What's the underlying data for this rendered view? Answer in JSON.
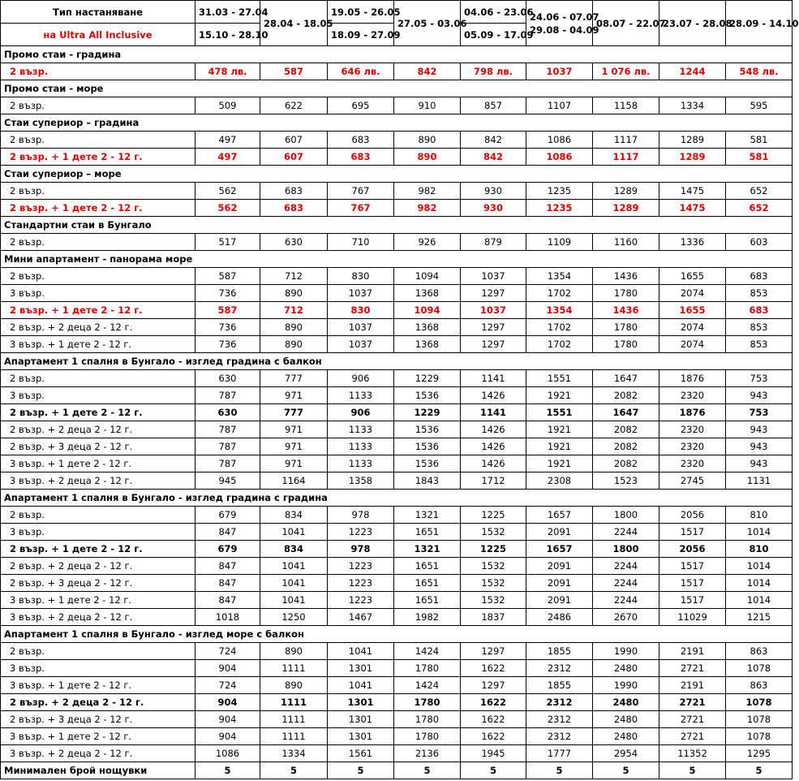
{
  "header": {
    "title": "Тип настаняване",
    "subtitle": "на Ultra All Inclusive",
    "periods": [
      {
        "dates": [
          "31.03 - 27.04",
          "15.10 - 28.10"
        ],
        "split": true
      },
      {
        "dates": [
          "28.04 - 18.05"
        ]
      },
      {
        "dates": [
          "19.05 - 26.05",
          "18.09 - 27.09"
        ],
        "split": true
      },
      {
        "dates": [
          "27.05 - 03.06"
        ]
      },
      {
        "dates": [
          "04.06 - 23.06",
          "05.09 - 17.09"
        ],
        "split": true
      },
      {
        "dates": [
          "24.06 - 07.07",
          "29.08 - 04.09"
        ],
        "split": false
      },
      {
        "dates": [
          "08.07 - 22.07"
        ]
      },
      {
        "dates": [
          "23.07 - 28.08"
        ]
      },
      {
        "dates": [
          "28.09 - 14.10"
        ]
      }
    ]
  },
  "table": {
    "rows": [
      {
        "section": "Промо стаи  -  градина"
      },
      {
        "label": "2 възр.",
        "style": "red",
        "cells": [
          "478 лв.",
          "587",
          "646 лв.",
          "842",
          "798 лв.",
          "1037",
          "1 076 лв.",
          "1244",
          "548 лв."
        ]
      },
      {
        "section": "Промо стаи  -  море"
      },
      {
        "label": "2 възр.",
        "cells": [
          "509",
          "622",
          "695",
          "910",
          "857",
          "1107",
          "1158",
          "1334",
          "595"
        ]
      },
      {
        "section": "Стаи супериор – градина"
      },
      {
        "label": "2 възр.",
        "cells": [
          "497",
          "607",
          "683",
          "890",
          "842",
          "1086",
          "1117",
          "1289",
          "581"
        ]
      },
      {
        "label": "2 възр. + 1 дете 2 - 12 г.",
        "style": "red",
        "cells": [
          "497",
          "607",
          "683",
          "890",
          "842",
          "1086",
          "1117",
          "1289",
          "581"
        ]
      },
      {
        "section": "Стаи супериор – море"
      },
      {
        "label": "2 възр.",
        "cells": [
          "562",
          "683",
          "767",
          "982",
          "930",
          "1235",
          "1289",
          "1475",
          "652"
        ]
      },
      {
        "label": "2 възр. + 1 дете 2 - 12 г.",
        "style": "red",
        "cells": [
          "562",
          "683",
          "767",
          "982",
          "930",
          "1235",
          "1289",
          "1475",
          "652"
        ]
      },
      {
        "section": "Стандартни стаи в Бунгало"
      },
      {
        "label": "2 възр.",
        "cells": [
          "517",
          "630",
          "710",
          "926",
          "879",
          "1109",
          "1160",
          "1336",
          "603"
        ]
      },
      {
        "section": "Мини апартамент - панорама море"
      },
      {
        "label": "2 възр.",
        "cells": [
          "587",
          "712",
          "830",
          "1094",
          "1037",
          "1354",
          "1436",
          "1655",
          "683"
        ]
      },
      {
        "label": "3 възр.",
        "cells": [
          "736",
          "890",
          "1037",
          "1368",
          "1297",
          "1702",
          "1780",
          "2074",
          "853"
        ]
      },
      {
        "label": "2 възр. + 1 дете 2 - 12 г.",
        "style": "red",
        "cells": [
          "587",
          "712",
          "830",
          "1094",
          "1037",
          "1354",
          "1436",
          "1655",
          "683"
        ]
      },
      {
        "label": "2 възр. + 2 деца 2 - 12 г.",
        "cells": [
          "736",
          "890",
          "1037",
          "1368",
          "1297",
          "1702",
          "1780",
          "2074",
          "853"
        ]
      },
      {
        "label": "3 възр. + 1 дете 2 - 12 г.",
        "cells": [
          "736",
          "890",
          "1037",
          "1368",
          "1297",
          "1702",
          "1780",
          "2074",
          "853"
        ]
      },
      {
        "section": "Апартамент 1 спалня в Бунгало - изглед градина с балкон"
      },
      {
        "label": "2 възр.",
        "cells": [
          "630",
          "777",
          "906",
          "1229",
          "1141",
          "1551",
          "1647",
          "1876",
          "753"
        ]
      },
      {
        "label": "3 възр.",
        "cells": [
          "787",
          "971",
          "1133",
          "1536",
          "1426",
          "1921",
          "2082",
          "2320",
          "943"
        ]
      },
      {
        "label": "2 възр. + 1 дете 2 - 12 г.",
        "style": "bold",
        "cells": [
          "630",
          "777",
          "906",
          "1229",
          "1141",
          "1551",
          "1647",
          "1876",
          "753"
        ]
      },
      {
        "label": "2 възр. + 2 деца 2 - 12 г.",
        "cells": [
          "787",
          "971",
          "1133",
          "1536",
          "1426",
          "1921",
          "2082",
          "2320",
          "943"
        ]
      },
      {
        "label": "2 възр. + 3 деца 2 - 12 г.",
        "cells": [
          "787",
          "971",
          "1133",
          "1536",
          "1426",
          "1921",
          "2082",
          "2320",
          "943"
        ]
      },
      {
        "label": "3 възр. + 1 дете 2 - 12 г.",
        "cells": [
          "787",
          "971",
          "1133",
          "1536",
          "1426",
          "1921",
          "2082",
          "2320",
          "943"
        ]
      },
      {
        "label": "3 възр. + 2 деца 2 - 12 г.",
        "cells": [
          "945",
          "1164",
          "1358",
          "1843",
          "1712",
          "2308",
          "1523",
          "2745",
          "1131"
        ]
      },
      {
        "section": "Апартамент 1 спалня в Бунгало - изглед градина с градина"
      },
      {
        "label": "2 възр.",
        "cells": [
          "679",
          "834",
          "978",
          "1321",
          "1225",
          "1657",
          "1800",
          "2056",
          "810"
        ]
      },
      {
        "label": "3 възр.",
        "cells": [
          "847",
          "1041",
          "1223",
          "1651",
          "1532",
          "2091",
          "2244",
          "1517",
          "1014"
        ]
      },
      {
        "label": "2 възр. + 1 дете 2 - 12 г.",
        "style": "bold",
        "cells": [
          "679",
          "834",
          "978",
          "1321",
          "1225",
          "1657",
          "1800",
          "2056",
          "810"
        ]
      },
      {
        "label": "2 възр. + 2 деца 2 - 12 г.",
        "cells": [
          "847",
          "1041",
          "1223",
          "1651",
          "1532",
          "2091",
          "2244",
          "1517",
          "1014"
        ]
      },
      {
        "label": "2 възр. + 3 деца 2 - 12 г.",
        "cells": [
          "847",
          "1041",
          "1223",
          "1651",
          "1532",
          "2091",
          "2244",
          "1517",
          "1014"
        ]
      },
      {
        "label": "3 възр. + 1 дете 2 - 12 г.",
        "cells": [
          "847",
          "1041",
          "1223",
          "1651",
          "1532",
          "2091",
          "2244",
          "1517",
          "1014"
        ]
      },
      {
        "label": "3 възр. + 2 деца 2 - 12 г.",
        "cells": [
          "1018",
          "1250",
          "1467",
          "1982",
          "1837",
          "2486",
          "2670",
          "11029",
          "1215"
        ]
      },
      {
        "section": "Апартамент 1 спалня в Бунгало - изглед море с балкон"
      },
      {
        "label": "2 възр.",
        "cells": [
          "724",
          "890",
          "1041",
          "1424",
          "1297",
          "1855",
          "1990",
          "2191",
          "863"
        ]
      },
      {
        "label": "3 възр.",
        "cells": [
          "904",
          "1111",
          "1301",
          "1780",
          "1622",
          "2312",
          "2480",
          "2721",
          "1078"
        ]
      },
      {
        "label": "3 възр. + 1 дете 2 - 12 г.",
        "cells": [
          "724",
          "890",
          "1041",
          "1424",
          "1297",
          "1855",
          "1990",
          "2191",
          "863"
        ]
      },
      {
        "label": "2 възр. + 2 деца 2 - 12 г.",
        "style": "bold",
        "cells": [
          "904",
          "1111",
          "1301",
          "1780",
          "1622",
          "2312",
          "2480",
          "2721",
          "1078"
        ]
      },
      {
        "label": "2 възр. + 3 деца 2 - 12 г.",
        "cells": [
          "904",
          "1111",
          "1301",
          "1780",
          "1622",
          "2312",
          "2480",
          "2721",
          "1078"
        ]
      },
      {
        "label": "3 възр. + 1 дете 2 - 12 г.",
        "cells": [
          "904",
          "1111",
          "1301",
          "1780",
          "1622",
          "2312",
          "2480",
          "2721",
          "1078"
        ]
      },
      {
        "label": "3 възр. + 2 деца 2 - 12 г.",
        "cells": [
          "1086",
          "1334",
          "1561",
          "2136",
          "1945",
          "1777",
          "2954",
          "11352",
          "1295"
        ]
      },
      {
        "label": "Минимален брой нощувки",
        "style": "bold",
        "cells": [
          "5",
          "5",
          "5",
          "5",
          "5",
          "5",
          "5",
          "5",
          "5"
        ]
      }
    ]
  }
}
